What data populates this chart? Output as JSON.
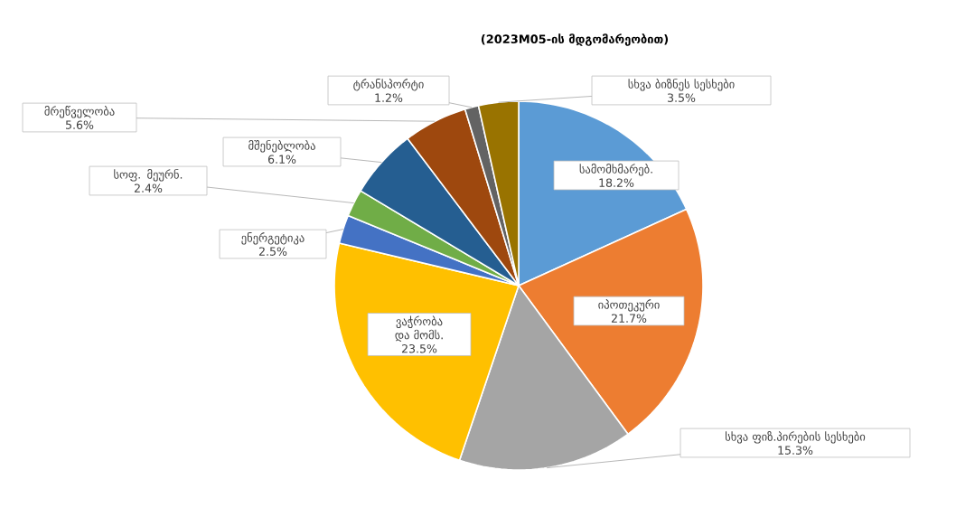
{
  "chart_data": {
    "type": "pie",
    "title": "(2023M05-ის მდგომარეობით)",
    "categories": [
      "სამომხმარებ.",
      "იპოთეკური",
      "სხვა ფიზ.პირების სესხები",
      "ვაჭრობა და მომს.",
      "ენერგეტიკა",
      "სოფ. მეურნ.",
      "მშენებლობა",
      "მრეწველობა",
      "ტრანსპორტი",
      "სხვა ბიზნეს სესხები"
    ],
    "values": [
      18.2,
      21.7,
      15.3,
      23.5,
      2.5,
      2.4,
      6.1,
      5.6,
      1.2,
      3.5
    ],
    "value_labels": [
      "18.2%",
      "21.7%",
      "15.3%",
      "23.5%",
      "2.5%",
      "2.4%",
      "6.1%",
      "5.6%",
      "1.2%",
      "3.5%"
    ],
    "colors": [
      "#5b9bd5",
      "#ed7d31",
      "#a5a5a5",
      "#ffc000",
      "#4472c4",
      "#70ad47",
      "#255e91",
      "#9e480e",
      "#636363",
      "#997300"
    ]
  }
}
